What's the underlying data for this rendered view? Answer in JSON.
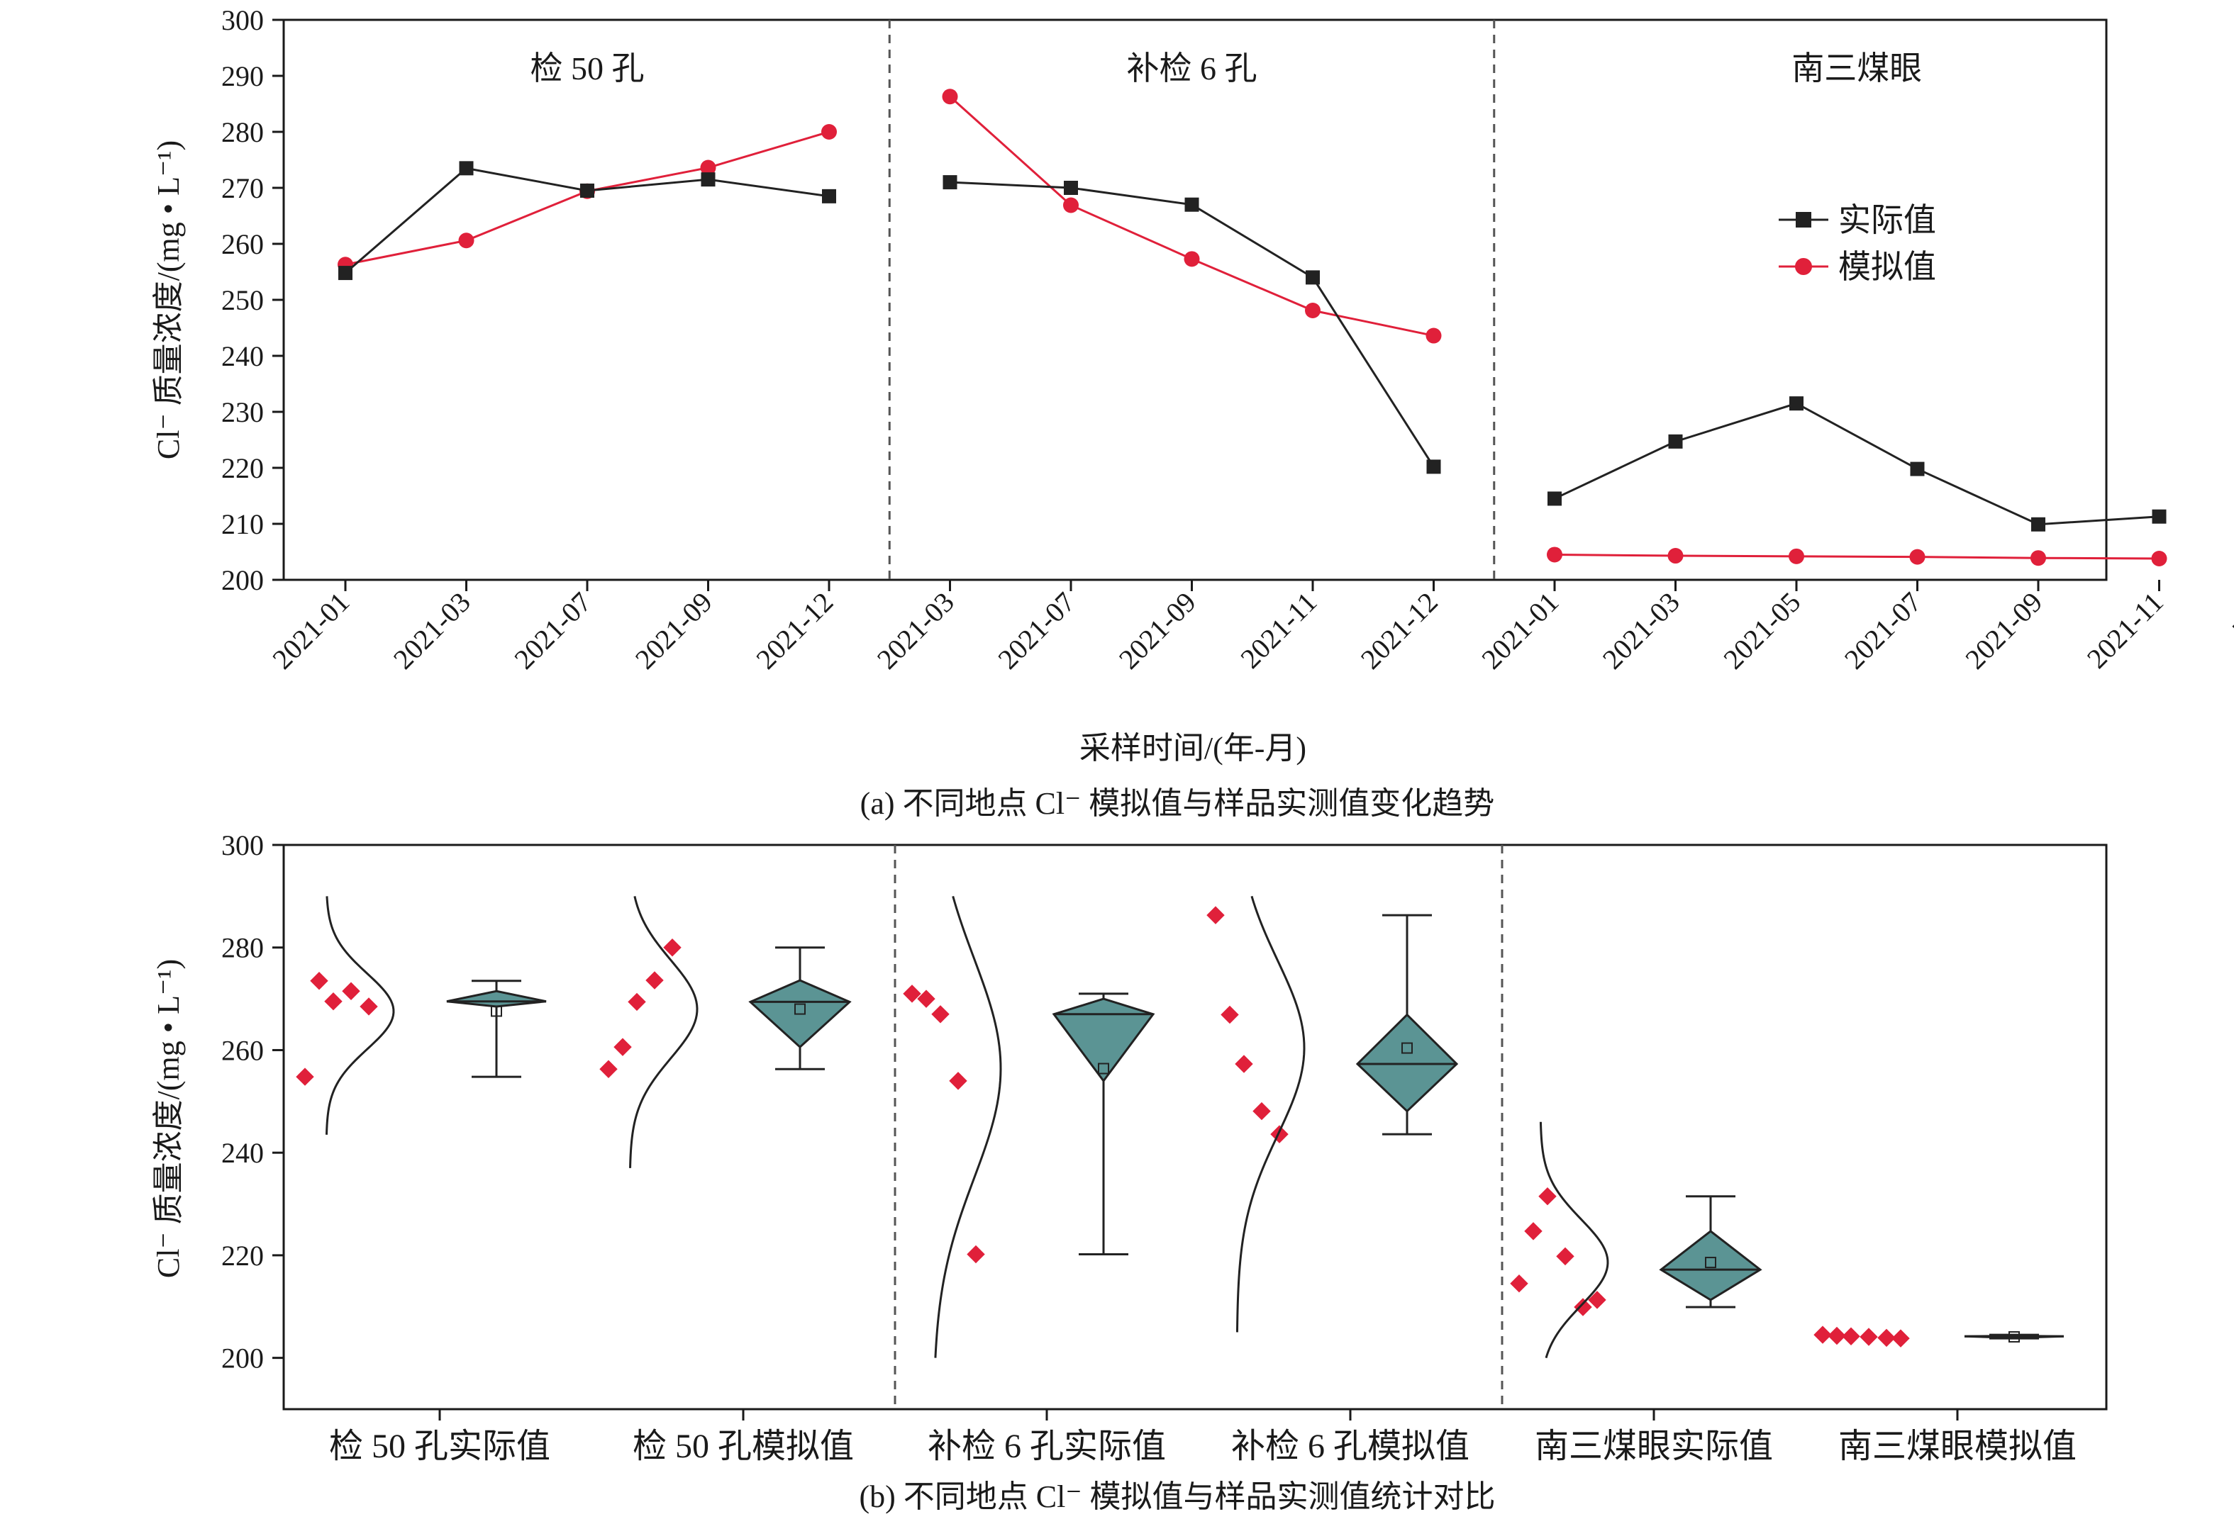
{
  "colors": {
    "actual": "#222222",
    "simulated": "#e0203a",
    "box_fill": "#5b9494",
    "divider": "#555555"
  },
  "chart_data": [
    {
      "type": "line",
      "caption": "(a) 不同地点 Cl⁻ 模拟值与样品实测值变化趋势",
      "xlabel": "采样时间/(年-月)",
      "ylabel": "Cl⁻ 质量浓度/(mg • L⁻¹)",
      "ylim": [
        200,
        300
      ],
      "yticks": [
        "200",
        "210",
        "220",
        "230",
        "240",
        "250",
        "260",
        "270",
        "280",
        "290",
        "300"
      ],
      "categories": [
        "2021-01",
        "2021-03",
        "2021-07",
        "2021-09",
        "2021-12",
        "2021-03",
        "2021-07",
        "2021-09",
        "2021-11",
        "2021-12",
        "2021-01",
        "2021-03",
        "2021-05",
        "2021-07",
        "2021-09",
        "2021-11",
        "平均"
      ],
      "regions": [
        {
          "label": "检 50 孔",
          "start": 0,
          "end": 4
        },
        {
          "label": "补检 6 孔",
          "start": 5,
          "end": 9
        },
        {
          "label": "南三煤眼",
          "start": 10,
          "end": 16
        }
      ],
      "legend_position": "right",
      "series": [
        {
          "name": "实际值",
          "marker": "square",
          "segments": [
            [
              254.8,
              273.5,
              269.5,
              271.5,
              268.5
            ],
            [
              271.0,
              270.0,
              267.0,
              254.0,
              220.2
            ],
            [
              214.5,
              224.7,
              231.5,
              219.8,
              209.9,
              211.3
            ]
          ]
        },
        {
          "name": "模拟值",
          "marker": "circle",
          "segments": [
            [
              256.3,
              260.6,
              269.4,
              273.6,
              280.0
            ],
            [
              286.3,
              266.9,
              257.3,
              248.1,
              243.6
            ],
            [
              204.5,
              204.3,
              204.2,
              204.1,
              203.9,
              203.8
            ]
          ]
        }
      ]
    },
    {
      "type": "box",
      "caption": "(b) 不同地点 Cl⁻ 模拟值与样品实测值统计对比",
      "ylabel": "Cl⁻ 质量浓度/(mg • L⁻¹)",
      "ylim": [
        190,
        300
      ],
      "yticks": [
        "200",
        "220",
        "240",
        "260",
        "280",
        "300"
      ],
      "categories": [
        "检 50 孔实际值",
        "检 50 孔模拟值",
        "补检 6 孔实际值",
        "补检 6 孔模拟值",
        "南三煤眼实际值",
        "南三煤眼模拟值"
      ],
      "groups": [
        {
          "points": [
            254.8,
            273.5,
            269.5,
            271.5,
            268.5
          ],
          "min": 254.8,
          "q1": 268.5,
          "median": 269.5,
          "q3": 271.5,
          "max": 273.5,
          "mean": 267.6,
          "curve": [
            243.5,
            290
          ]
        },
        {
          "points": [
            256.3,
            260.6,
            269.4,
            273.6,
            280.0
          ],
          "min": 256.3,
          "q1": 260.6,
          "median": 269.4,
          "q3": 273.6,
          "max": 280.0,
          "mean": 268.0,
          "curve": [
            237,
            290
          ]
        },
        {
          "points": [
            271.0,
            270.0,
            267.0,
            254.0,
            220.2
          ],
          "min": 220.2,
          "q1": 254.0,
          "median": 267.0,
          "q3": 270.0,
          "max": 271.0,
          "mean": 256.4,
          "curve": [
            200,
            290
          ]
        },
        {
          "points": [
            286.3,
            266.9,
            257.3,
            248.1,
            243.6
          ],
          "min": 243.6,
          "q1": 248.1,
          "median": 257.3,
          "q3": 266.9,
          "max": 286.3,
          "mean": 260.4,
          "curve": [
            205,
            290
          ]
        },
        {
          "points": [
            214.5,
            224.7,
            231.5,
            219.8,
            209.9,
            211.3
          ],
          "min": 209.9,
          "q1": 211.3,
          "median": 217.2,
          "q3": 224.7,
          "max": 231.5,
          "mean": 218.6,
          "curve": [
            200,
            246
          ]
        },
        {
          "points": [
            204.5,
            204.3,
            204.2,
            204.1,
            203.9,
            203.8
          ],
          "min": 203.8,
          "q1": 203.9,
          "median": 204.2,
          "q3": 204.3,
          "max": 204.5,
          "mean": 204.1,
          "curve": null
        }
      ]
    }
  ]
}
